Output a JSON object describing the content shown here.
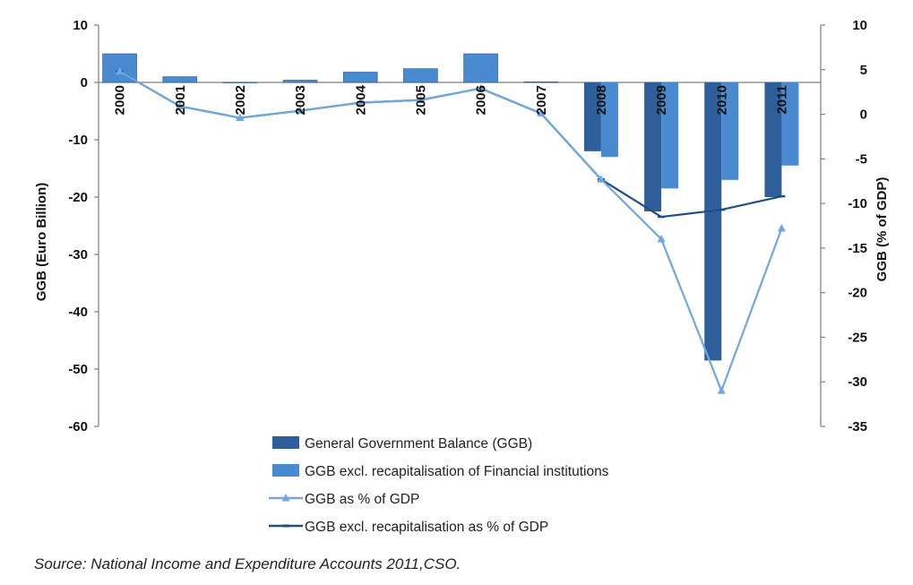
{
  "colors": {
    "ggb_bar": "#2e5f9a",
    "ggb_excl_bar": "#4a8ad0",
    "ggb_pct_line": "#6fa7de",
    "ggb_excl_pct_line": "#1f4e85",
    "axis": "#7f7f7f"
  },
  "chart_data": {
    "type": "bar",
    "categories": [
      "2000",
      "2001",
      "2002",
      "2003",
      "2004",
      "2005",
      "2006",
      "2007",
      "2008",
      "2009",
      "2010",
      "2011"
    ],
    "series": [
      {
        "name": "General Government Balance (GGB)",
        "chart_kind": "bar",
        "axis": "left",
        "values": [
          5.0,
          1.0,
          0.0,
          0.4,
          1.8,
          2.4,
          5.0,
          0.1,
          -12.0,
          -22.5,
          -48.5,
          -20.0
        ]
      },
      {
        "name": "GGB excl. recapitalisation of Financial institutions",
        "chart_kind": "bar",
        "axis": "left",
        "values": [
          5.0,
          1.0,
          0.0,
          0.4,
          1.8,
          2.4,
          5.0,
          0.1,
          -13.0,
          -18.5,
          -17.0,
          -14.5
        ]
      },
      {
        "name": "GGB as % of GDP",
        "chart_kind": "line",
        "axis": "right",
        "marker": "triangle",
        "values": [
          4.8,
          0.9,
          -0.4,
          0.4,
          1.3,
          1.6,
          2.9,
          0.1,
          -7.3,
          -14.0,
          -31.0,
          -12.8
        ]
      },
      {
        "name": "GGB excl. recapitalisation as % of GDP",
        "chart_kind": "line",
        "axis": "right",
        "marker": "dash",
        "values": [
          4.8,
          0.9,
          -0.4,
          0.4,
          1.3,
          1.6,
          2.9,
          0.1,
          -7.3,
          -11.5,
          -10.7,
          -9.2
        ]
      }
    ],
    "ylabel": "GGB (Euro Billion)",
    "ylabel_right": "GGB (% of GDP)",
    "ylim": [
      -60,
      10
    ],
    "yticks": [
      10,
      0,
      -10,
      -20,
      -30,
      -40,
      -50,
      -60
    ],
    "ylim_right": [
      -35,
      10
    ],
    "yticks_right": [
      10,
      5,
      0,
      -5,
      -10,
      -15,
      -20,
      -25,
      -30,
      -35
    ],
    "grid": false,
    "legend_position": "bottom"
  },
  "source": "Source: National Income and Expenditure Accounts 2011,CSO."
}
